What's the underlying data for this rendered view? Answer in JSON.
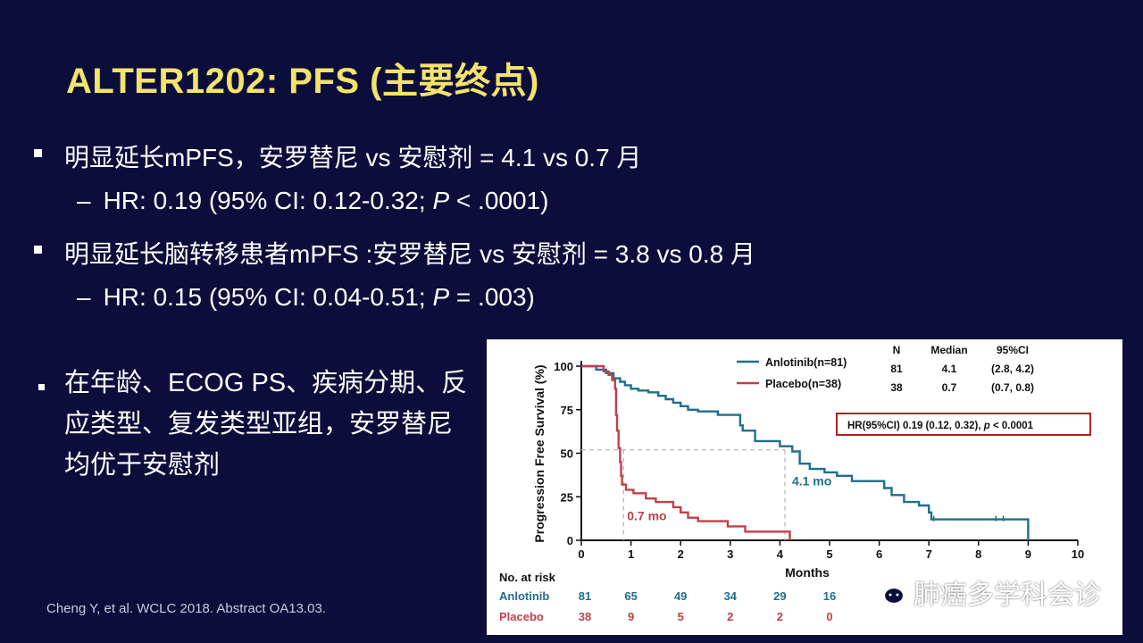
{
  "slide": {
    "title": "ALTER1202: PFS (主要终点)",
    "bullets": [
      "明显延长mPFS，安罗替尼 vs 安慰剂 = 4.1 vs 0.7 月",
      "HR: 0.19 (95% CI: 0.12-0.32; P < .0001)",
      "明显延长脑转移患者mPFS :安罗替尼 vs 安慰剂 = 3.8 vs 0.8 月",
      "HR: 0.15 (95% CI: 0.04-0.51; P = .003)"
    ],
    "hr1": {
      "pre": "HR: 0.19 (95% CI: 0.12-0.32; ",
      "p": "P",
      "post": " < .0001)"
    },
    "hr2": {
      "pre": "HR: 0.15 (95% CI: 0.04-0.51; ",
      "p": "P",
      "post": " = .003)"
    },
    "left_text": "在年龄、ECOG PS、疾病分期、反应类型、复发类型亚组，安罗替尼均优于安慰剂",
    "citation": "Cheng Y, et al. WCLC 2018. Abstract OA13.03.",
    "watermark": "肺癌多学科会诊",
    "watermark_icon": "wechat-icon"
  },
  "chart_data": {
    "type": "line",
    "xlabel": "Months",
    "ylabel": "Progression Free Survival (%)",
    "xlim": [
      0,
      10
    ],
    "ylim": [
      0,
      100
    ],
    "xticks": [
      0,
      1,
      2,
      3,
      4,
      5,
      6,
      7,
      8,
      9,
      10
    ],
    "yticks": [
      0,
      25,
      50,
      75,
      100
    ],
    "colors": {
      "anlotinib": "#1f6e8c",
      "placebo": "#c0404a",
      "hr_box": "#b01e23"
    },
    "series": [
      {
        "name": "Anlotinib(n=81)",
        "key": "anlotinib",
        "points": [
          [
            0,
            100
          ],
          [
            0.3,
            100
          ],
          [
            0.3,
            98
          ],
          [
            0.5,
            98
          ],
          [
            0.5,
            96
          ],
          [
            0.65,
            96
          ],
          [
            0.65,
            93
          ],
          [
            0.78,
            93
          ],
          [
            0.78,
            91
          ],
          [
            0.88,
            91
          ],
          [
            0.88,
            89
          ],
          [
            1.0,
            89
          ],
          [
            1.0,
            87
          ],
          [
            1.15,
            87
          ],
          [
            1.15,
            86
          ],
          [
            1.35,
            86
          ],
          [
            1.35,
            85
          ],
          [
            1.55,
            85
          ],
          [
            1.55,
            83
          ],
          [
            1.7,
            83
          ],
          [
            1.7,
            81
          ],
          [
            1.85,
            81
          ],
          [
            1.85,
            79
          ],
          [
            2.0,
            79
          ],
          [
            2.0,
            77
          ],
          [
            2.15,
            77
          ],
          [
            2.15,
            75
          ],
          [
            2.35,
            75
          ],
          [
            2.35,
            74
          ],
          [
            2.75,
            74
          ],
          [
            2.75,
            72
          ],
          [
            3.2,
            72
          ],
          [
            3.2,
            66
          ],
          [
            3.25,
            66
          ],
          [
            3.25,
            63
          ],
          [
            3.5,
            63
          ],
          [
            3.5,
            57
          ],
          [
            4.0,
            57
          ],
          [
            4.0,
            54
          ],
          [
            4.25,
            54
          ],
          [
            4.25,
            51
          ],
          [
            4.4,
            51
          ],
          [
            4.4,
            44
          ],
          [
            4.6,
            44
          ],
          [
            4.6,
            41
          ],
          [
            4.9,
            41
          ],
          [
            4.9,
            39
          ],
          [
            5.15,
            39
          ],
          [
            5.15,
            37
          ],
          [
            5.45,
            37
          ],
          [
            5.45,
            34
          ],
          [
            6.1,
            34
          ],
          [
            6.1,
            30
          ],
          [
            6.25,
            30
          ],
          [
            6.25,
            26
          ],
          [
            6.5,
            26
          ],
          [
            6.5,
            22
          ],
          [
            6.8,
            22
          ],
          [
            6.8,
            20
          ],
          [
            7.0,
            20
          ],
          [
            7.0,
            16
          ],
          [
            7.05,
            16
          ],
          [
            7.05,
            12
          ],
          [
            9.0,
            12
          ],
          [
            9.0,
            0
          ]
        ]
      },
      {
        "name": "Placebo(n=38)",
        "key": "placebo",
        "points": [
          [
            0,
            100
          ],
          [
            0.45,
            100
          ],
          [
            0.45,
            97
          ],
          [
            0.55,
            97
          ],
          [
            0.55,
            95
          ],
          [
            0.62,
            95
          ],
          [
            0.62,
            92
          ],
          [
            0.68,
            92
          ],
          [
            0.68,
            87
          ],
          [
            0.7,
            87
          ],
          [
            0.7,
            72
          ],
          [
            0.72,
            72
          ],
          [
            0.72,
            63
          ],
          [
            0.75,
            63
          ],
          [
            0.75,
            53
          ],
          [
            0.78,
            53
          ],
          [
            0.78,
            45
          ],
          [
            0.8,
            45
          ],
          [
            0.8,
            37
          ],
          [
            0.82,
            37
          ],
          [
            0.82,
            32
          ],
          [
            0.9,
            32
          ],
          [
            0.9,
            29
          ],
          [
            1.05,
            29
          ],
          [
            1.05,
            27
          ],
          [
            1.3,
            27
          ],
          [
            1.3,
            24
          ],
          [
            1.5,
            24
          ],
          [
            1.5,
            22
          ],
          [
            1.85,
            22
          ],
          [
            1.85,
            19
          ],
          [
            2.0,
            19
          ],
          [
            2.0,
            16
          ],
          [
            2.15,
            16
          ],
          [
            2.15,
            13
          ],
          [
            2.35,
            13
          ],
          [
            2.35,
            11
          ],
          [
            2.95,
            11
          ],
          [
            2.95,
            8
          ],
          [
            3.3,
            8
          ],
          [
            3.3,
            5
          ],
          [
            4.2,
            5
          ],
          [
            4.2,
            0
          ]
        ]
      }
    ],
    "medians": [
      {
        "label": "4.1 mo",
        "x": 4.1,
        "y": 52,
        "key": "anlotinib"
      },
      {
        "label": "0.7 mo",
        "x": 0.85,
        "y": 52,
        "key": "placebo"
      }
    ],
    "summary_table": {
      "headers": [
        "N",
        "Median",
        "95%CI"
      ],
      "rows": [
        [
          "81",
          "4.1",
          "(2.8, 4.2)"
        ],
        [
          "38",
          "0.7",
          "(0.7, 0.8)"
        ]
      ]
    },
    "hr_text": {
      "pre": "HR(95%CI)    0.19 (0.12, 0.32), ",
      "p": "p",
      "post": " < 0.0001"
    },
    "risk_table": {
      "title": "No. at risk",
      "rows": [
        {
          "label": "Anlotinib",
          "values": [
            "81",
            "65",
            "49",
            "34",
            "29",
            "16"
          ],
          "key": "anlotinib"
        },
        {
          "label": "Placebo",
          "values": [
            "38",
            "9",
            "5",
            "2",
            "2",
            "0"
          ],
          "key": "placebo"
        }
      ]
    }
  }
}
